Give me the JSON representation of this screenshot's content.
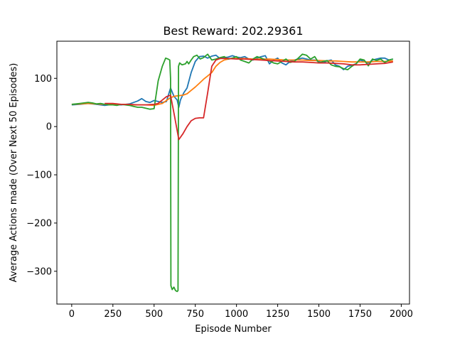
{
  "chart_data": {
    "type": "line",
    "title": "Best Reward:  202.29361",
    "xlabel": "Episode Number",
    "ylabel": "Average Actions made (Over Next 50 Episodes)",
    "xlim": [
      -90,
      2050
    ],
    "ylim": [
      -368,
      177
    ],
    "xticks": [
      0,
      250,
      500,
      750,
      1000,
      1250,
      1500,
      1750,
      2000
    ],
    "yticks": [
      -300,
      -200,
      -100,
      0,
      100
    ],
    "grid": false,
    "legend": "none",
    "series": [
      {
        "color": "#1f77b4",
        "x": [
          0,
          50,
          100,
          150,
          200,
          250,
          300,
          350,
          400,
          425,
          450,
          475,
          500,
          525,
          550,
          575,
          600,
          620,
          640,
          650,
          660,
          680,
          700,
          725,
          750,
          775,
          800,
          825,
          850,
          875,
          900,
          925,
          950,
          975,
          1000,
          1025,
          1050,
          1075,
          1100,
          1125,
          1150,
          1175,
          1200,
          1225,
          1250,
          1275,
          1300,
          1325,
          1350,
          1375,
          1400,
          1425,
          1450,
          1475,
          1500,
          1525,
          1550,
          1575,
          1600,
          1625,
          1650,
          1675,
          1700,
          1725,
          1750,
          1775,
          1800,
          1825,
          1850,
          1875,
          1900,
          1925,
          1950
        ],
        "y": [
          45,
          46,
          48,
          46,
          44,
          46,
          45,
          47,
          53,
          58,
          52,
          50,
          54,
          52,
          50,
          52,
          80,
          63,
          55,
          40,
          55,
          70,
          80,
          112,
          135,
          145,
          146,
          142,
          146,
          148,
          141,
          143,
          144,
          147,
          144,
          143,
          145,
          140,
          138,
          142,
          145,
          147,
          130,
          138,
          142,
          132,
          128,
          135,
          138,
          140,
          142,
          140,
          138,
          138,
          135,
          132,
          136,
          138,
          128,
          125,
          118,
          125,
          127,
          130,
          138,
          135,
          132,
          138,
          140,
          142,
          142,
          138,
          140
        ]
      },
      {
        "color": "#ff7f0e",
        "x": [
          0,
          50,
          100,
          150,
          200,
          250,
          300,
          350,
          400,
          450,
          500,
          550,
          600,
          625,
          650,
          675,
          700,
          725,
          750,
          775,
          800,
          825,
          850,
          875,
          900,
          925,
          950,
          975,
          1000,
          1050,
          1100,
          1150,
          1200,
          1250,
          1300,
          1350,
          1400,
          1450,
          1500,
          1550,
          1600,
          1650,
          1700,
          1750,
          1800,
          1850,
          1900,
          1950
        ],
        "y": [
          46,
          47,
          48,
          47,
          46,
          46,
          46,
          45,
          45,
          45,
          44,
          48,
          60,
          63,
          64,
          65,
          68,
          75,
          82,
          90,
          98,
          105,
          112,
          125,
          133,
          138,
          140,
          141,
          141,
          141,
          140,
          140,
          140,
          139,
          138,
          138,
          138,
          137,
          137,
          136,
          136,
          135,
          134,
          134,
          134,
          135,
          135,
          136
        ]
      },
      {
        "color": "#2ca02c",
        "x": [
          0,
          25,
          50,
          75,
          100,
          125,
          150,
          175,
          200,
          225,
          250,
          275,
          300,
          325,
          350,
          375,
          400,
          425,
          450,
          475,
          500,
          525,
          550,
          570,
          585,
          595,
          600,
          602,
          610,
          620,
          630,
          640,
          645,
          648,
          655,
          670,
          690,
          700,
          710,
          725,
          740,
          760,
          780,
          800,
          825,
          850,
          875,
          900,
          925,
          950,
          975,
          1000,
          1025,
          1050,
          1075,
          1100,
          1125,
          1150,
          1175,
          1200,
          1225,
          1250,
          1275,
          1300,
          1325,
          1350,
          1375,
          1400,
          1425,
          1450,
          1475,
          1500,
          1525,
          1550,
          1575,
          1600,
          1625,
          1650,
          1675,
          1700,
          1725,
          1750,
          1775,
          1800,
          1825,
          1850,
          1875,
          1900,
          1925,
          1950
        ],
        "y": [
          46,
          47,
          48,
          49,
          50,
          49,
          47,
          48,
          46,
          45,
          45,
          44,
          46,
          45,
          44,
          42,
          40,
          40,
          38,
          36,
          37,
          95,
          125,
          142,
          140,
          138,
          100,
          -330,
          -338,
          -333,
          -340,
          -342,
          -340,
          125,
          132,
          128,
          130,
          135,
          130,
          138,
          145,
          148,
          140,
          143,
          150,
          138,
          140,
          143,
          145,
          140,
          142,
          145,
          138,
          135,
          132,
          140,
          145,
          142,
          138,
          136,
          132,
          130,
          135,
          140,
          133,
          135,
          142,
          150,
          148,
          140,
          145,
          132,
          135,
          137,
          128,
          125,
          124,
          120,
          118,
          125,
          130,
          140,
          138,
          126,
          140,
          137,
          140,
          133,
          138,
          140
        ]
      },
      {
        "color": "#d62728",
        "x": [
          200,
          250,
          300,
          350,
          400,
          450,
          500,
          525,
          550,
          575,
          600,
          625,
          650,
          675,
          700,
          725,
          750,
          775,
          800,
          825,
          850,
          875,
          900,
          950,
          1000,
          1050,
          1100,
          1150,
          1200,
          1250,
          1300,
          1350,
          1400,
          1450,
          1500,
          1550,
          1600,
          1650,
          1700,
          1750,
          1800,
          1850,
          1900,
          1950
        ],
        "y": [
          48,
          48,
          46,
          46,
          45,
          45,
          46,
          48,
          55,
          62,
          65,
          20,
          -27,
          -15,
          0,
          12,
          17,
          18,
          18,
          70,
          125,
          138,
          141,
          141,
          140,
          140,
          139,
          138,
          137,
          136,
          135,
          134,
          134,
          133,
          132,
          132,
          131,
          130,
          128,
          128,
          129,
          130,
          131,
          134
        ]
      }
    ]
  }
}
